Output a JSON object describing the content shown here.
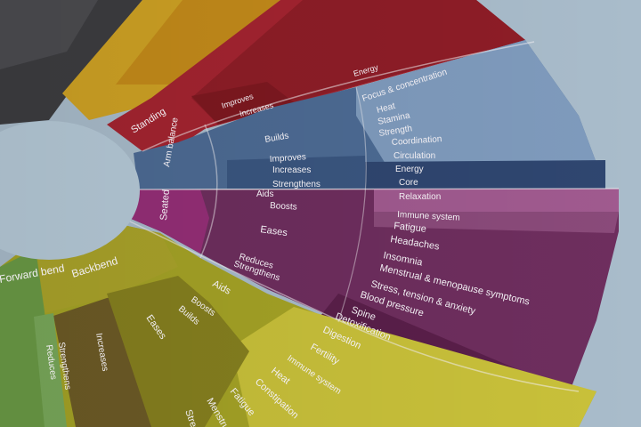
{
  "scene": {
    "background_color": "#a9bccb",
    "center_color": "#b6cad8",
    "divider_color": "#f4f1f4"
  },
  "wheel": {
    "segments": [
      {
        "name": "dark-grey",
        "colors": [
          "#3a3a3c",
          "#4a4a4c",
          "#5a5a5c"
        ],
        "label": "",
        "items": []
      },
      {
        "name": "yellow-orange",
        "colors": [
          "#cfa224",
          "#c98f1a",
          "#d5a531"
        ],
        "label": "",
        "items": []
      },
      {
        "name": "red",
        "colors": [
          "#a8202b",
          "#8c1b24",
          "#a5252e"
        ],
        "label": "Standing",
        "groups": [
          {
            "label": "",
            "sub": [
              "",
              "",
              ""
            ]
          },
          {
            "label": "Improves",
            "sub": [
              "",
              ""
            ]
          },
          {
            "label": "Increases",
            "sub": [
              "Energy",
              ""
            ]
          }
        ]
      },
      {
        "name": "blue",
        "colors": [
          "#3c5a83",
          "#4d6b94",
          "#7f9bbd"
        ],
        "label": "Arm balance",
        "groups": [
          {
            "label": "Builds",
            "sub": [
              "Focus & concentration",
              "Heat",
              "Stamina",
              "Strength"
            ]
          },
          {
            "label": "Improves",
            "sub": [
              "Coordination"
            ]
          },
          {
            "label": "Increases",
            "sub": [
              "Circulation",
              "Energy"
            ]
          },
          {
            "label": "Strengthens",
            "sub": [
              "Core"
            ]
          }
        ]
      },
      {
        "name": "purple",
        "colors": [
          "#912f74",
          "#6e2e5e",
          "#8a3f77"
        ],
        "label": "Seated",
        "groups": [
          {
            "label": "Aids",
            "sub": [
              "Relaxation"
            ]
          },
          {
            "label": "Boosts",
            "sub": [
              "Immune system"
            ]
          },
          {
            "label": "Eases",
            "sub": [
              "Fatigue",
              "Headaches",
              "Insomnia",
              "Menstrual & menopause symptoms",
              "Stress, tension & anxiety"
            ]
          },
          {
            "label": "Reduces",
            "sub": [
              "Blood pressure"
            ]
          },
          {
            "label": "Strengthens",
            "sub": [
              "Spine"
            ]
          }
        ]
      },
      {
        "name": "olive",
        "colors": [
          "#8a8c1f",
          "#a5a326",
          "#c9c13a"
        ],
        "label": "Backbend",
        "groups": [
          {
            "label": "Aids",
            "sub": [
              "Detoxification",
              "Digestion",
              "Fertility"
            ]
          },
          {
            "label": "Boosts",
            "sub": [
              "Immune system"
            ]
          },
          {
            "label": "Builds",
            "sub": [
              "Heat"
            ]
          },
          {
            "label": "Eases",
            "sub": [
              "Constipation",
              "Fatigue",
              "Menstrual",
              "Stress"
            ]
          },
          {
            "label": "Increases",
            "sub": [
              ""
            ]
          },
          {
            "label": "Strengthens",
            "sub": [
              ""
            ]
          }
        ]
      },
      {
        "name": "green",
        "colors": [
          "#5f8b3b",
          "#6a9a45",
          "#6f9f4a"
        ],
        "label": "Forward bend",
        "groups": [
          {
            "label": "Reduces",
            "sub": []
          }
        ]
      }
    ]
  },
  "visible_text": {
    "red": {
      "main": "Standing",
      "mid1": "Improves",
      "mid2": "Increases",
      "outer": "Energy"
    },
    "blue": {
      "main": "Arm balance",
      "mid": [
        "Builds",
        "Improves",
        "Increases",
        "Strengthens"
      ],
      "outer": [
        "Focus & concentration",
        "Heat",
        "Stamina",
        "Strength",
        "Coordination",
        "Circulation",
        "Energy",
        "Core"
      ]
    },
    "purple": {
      "main": "Seated",
      "mid": [
        "Aids",
        "Boosts",
        "Eases",
        "Reduces",
        "Strengthens"
      ],
      "outer": [
        "Relaxation",
        "Immune system",
        "Fatigue",
        "Headaches",
        "Insomnia",
        "Menstrual & menopause symptoms",
        "Stress, tension & anxiety",
        "Blood pressure",
        "Spine"
      ]
    },
    "olive": {
      "main": "Backbend",
      "mid": [
        "Aids",
        "Boosts",
        "Builds",
        "Eases",
        "Increases",
        "Strengthens"
      ],
      "outer": [
        "Detoxification",
        "Digestion",
        "Fertility",
        "Immune system",
        "Heat",
        "Constipation",
        "Fatigue",
        "Menstrual",
        "Stress"
      ]
    },
    "green": {
      "main": "Forward bend",
      "mid": [
        "Reduces"
      ]
    }
  }
}
